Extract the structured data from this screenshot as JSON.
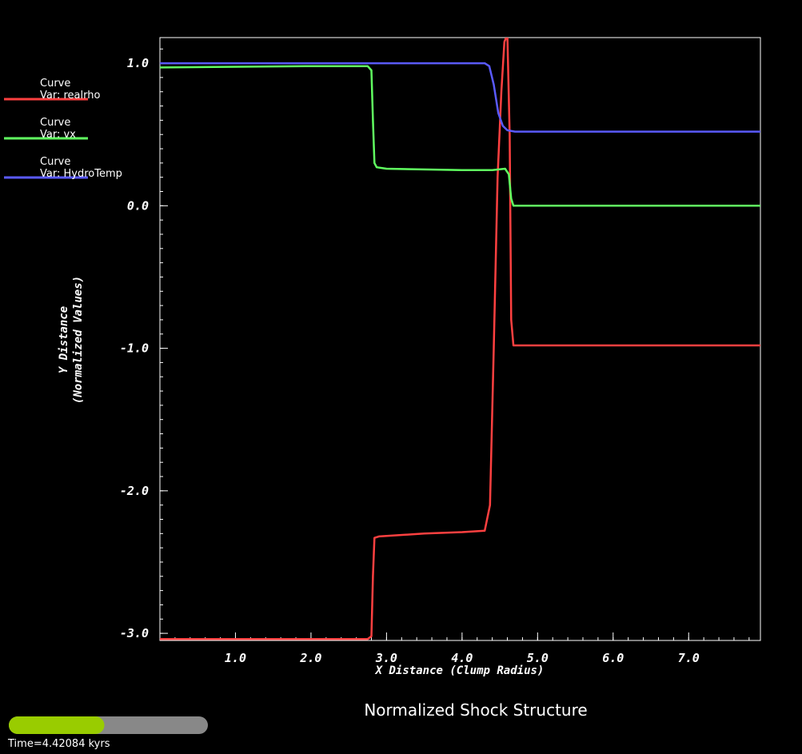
{
  "chart_data": {
    "type": "line",
    "caption": "Normalized Shock Structure",
    "xlabel": "X Distance (Clump Radius)",
    "ylabel_lines": [
      "Y Distance",
      "(Normalized Values)"
    ],
    "xlim": [
      0.0,
      7.95
    ],
    "ylim": [
      -3.05,
      1.18
    ],
    "x_ticks": [
      1.0,
      2.0,
      3.0,
      4.0,
      5.0,
      6.0,
      7.0
    ],
    "x_tick_labels": [
      "1.0",
      "2.0",
      "3.0",
      "4.0",
      "5.0",
      "6.0",
      "7.0"
    ],
    "y_ticks": [
      -3.0,
      -2.0,
      -1.0,
      0.0,
      1.0
    ],
    "y_tick_labels": [
      "-3.0",
      "-2.0",
      "-1.0",
      "0.0",
      "1.0"
    ],
    "grid": false,
    "legend_position": "top-left",
    "series": [
      {
        "name": "Curve",
        "var_label": "Var: realrho",
        "color": "#ff4040",
        "x": [
          0.0,
          2.75,
          2.8,
          2.82,
          2.84,
          2.9,
          3.5,
          4.0,
          4.3,
          4.37,
          4.42,
          4.47,
          4.52,
          4.56,
          4.6,
          4.63,
          4.65,
          4.68,
          5.0,
          6.0,
          7.95
        ],
        "y": [
          -3.04,
          -3.04,
          -3.02,
          -2.6,
          -2.33,
          -2.32,
          -2.3,
          -2.29,
          -2.28,
          -2.1,
          -1.0,
          0.2,
          0.8,
          1.15,
          1.2,
          0.5,
          -0.8,
          -0.98,
          -0.98,
          -0.98,
          -0.98
        ]
      },
      {
        "name": "Curve",
        "var_label": "Var: vx",
        "color": "#60ff60",
        "x": [
          0.0,
          2.0,
          2.75,
          2.8,
          2.82,
          2.84,
          2.87,
          3.0,
          4.0,
          4.4,
          4.57,
          4.62,
          4.65,
          4.68,
          5.0,
          7.95
        ],
        "y": [
          0.97,
          0.98,
          0.98,
          0.95,
          0.6,
          0.3,
          0.27,
          0.26,
          0.25,
          0.25,
          0.26,
          0.22,
          0.05,
          0.0,
          0.0,
          0.0
        ]
      },
      {
        "name": "Curve",
        "var_label": "Var: HydroTemp",
        "color": "#5a5aff",
        "x": [
          0.0,
          3.0,
          4.3,
          4.36,
          4.42,
          4.48,
          4.54,
          4.6,
          4.7,
          5.0,
          7.95
        ],
        "y": [
          1.0,
          1.0,
          1.0,
          0.98,
          0.85,
          0.65,
          0.56,
          0.53,
          0.52,
          0.52,
          0.52
        ]
      }
    ]
  },
  "time_slider": {
    "label": "Time=4.42084 kyrs",
    "progress": 0.48,
    "fill_color": "#99cc00",
    "track_color": "#888888"
  }
}
